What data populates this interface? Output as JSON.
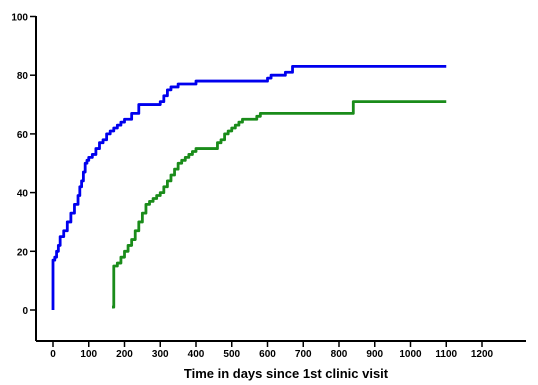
{
  "chart_data": {
    "type": "line",
    "title": "",
    "xlabel": "Time in days since 1st clinic visit",
    "ylabel": "",
    "xlim": [
      0,
      1200
    ],
    "ylim": [
      0,
      100
    ],
    "x_ticks": [
      0,
      100,
      200,
      300,
      400,
      500,
      600,
      700,
      800,
      900,
      1000,
      1100,
      1200
    ],
    "y_ticks": [
      0,
      20,
      40,
      60,
      80,
      100
    ],
    "grid": false,
    "legend": "none",
    "series": [
      {
        "color": "#0000ee",
        "step": true,
        "points": [
          [
            0,
            0
          ],
          [
            0,
            17
          ],
          [
            5,
            18
          ],
          [
            10,
            20
          ],
          [
            15,
            22
          ],
          [
            20,
            25
          ],
          [
            30,
            27
          ],
          [
            40,
            30
          ],
          [
            50,
            33
          ],
          [
            60,
            36
          ],
          [
            70,
            39
          ],
          [
            75,
            42
          ],
          [
            80,
            44
          ],
          [
            85,
            47
          ],
          [
            90,
            50
          ],
          [
            95,
            51
          ],
          [
            100,
            52
          ],
          [
            110,
            53
          ],
          [
            120,
            55
          ],
          [
            130,
            57
          ],
          [
            140,
            58
          ],
          [
            150,
            60
          ],
          [
            160,
            61
          ],
          [
            170,
            62
          ],
          [
            180,
            63
          ],
          [
            190,
            64
          ],
          [
            200,
            65
          ],
          [
            220,
            67
          ],
          [
            240,
            70
          ],
          [
            300,
            71
          ],
          [
            310,
            73
          ],
          [
            320,
            75
          ],
          [
            330,
            76
          ],
          [
            350,
            77
          ],
          [
            400,
            78
          ],
          [
            600,
            79
          ],
          [
            610,
            80
          ],
          [
            650,
            81
          ],
          [
            670,
            83
          ],
          [
            1100,
            83
          ]
        ]
      },
      {
        "color": "#1a8c1a",
        "step": true,
        "points": [
          [
            165,
            1
          ],
          [
            170,
            15
          ],
          [
            180,
            16
          ],
          [
            190,
            18
          ],
          [
            200,
            20
          ],
          [
            210,
            22
          ],
          [
            220,
            24
          ],
          [
            230,
            27
          ],
          [
            240,
            30
          ],
          [
            250,
            33
          ],
          [
            260,
            36
          ],
          [
            270,
            37
          ],
          [
            280,
            38
          ],
          [
            290,
            39
          ],
          [
            300,
            40
          ],
          [
            310,
            42
          ],
          [
            320,
            44
          ],
          [
            330,
            46
          ],
          [
            340,
            48
          ],
          [
            350,
            50
          ],
          [
            360,
            51
          ],
          [
            370,
            52
          ],
          [
            380,
            53
          ],
          [
            390,
            54
          ],
          [
            400,
            55
          ],
          [
            450,
            55
          ],
          [
            460,
            57
          ],
          [
            470,
            58
          ],
          [
            480,
            60
          ],
          [
            490,
            61
          ],
          [
            500,
            62
          ],
          [
            510,
            63
          ],
          [
            520,
            64
          ],
          [
            530,
            65
          ],
          [
            570,
            66
          ],
          [
            580,
            67
          ],
          [
            780,
            67
          ],
          [
            840,
            71
          ],
          [
            1100,
            71
          ]
        ]
      }
    ]
  }
}
